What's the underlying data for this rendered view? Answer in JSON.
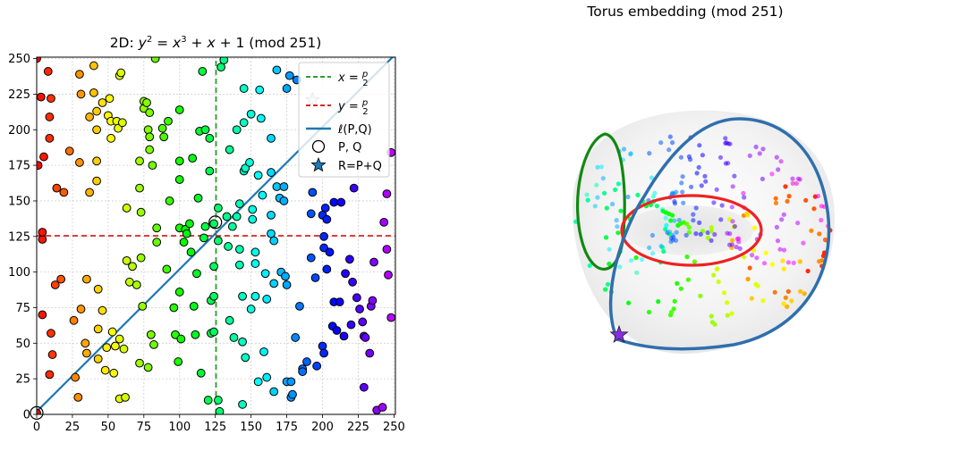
{
  "chart_data": [
    {
      "type": "scatter",
      "title": "2D: y² = x³ + x + 1 (mod 251)",
      "xlim": [
        0,
        251
      ],
      "ylim": [
        0,
        251
      ],
      "xticks": [
        0,
        25,
        50,
        75,
        100,
        125,
        150,
        175,
        200,
        225,
        250
      ],
      "yticks": [
        0,
        25,
        50,
        75,
        100,
        125,
        150,
        175,
        200,
        225,
        250
      ],
      "grid": true,
      "point_color_map": "hsv (hue by x)",
      "points": [
        [
          0,
          1
        ],
        [
          0,
          250
        ],
        [
          1,
          175
        ],
        [
          3,
          223
        ],
        [
          4,
          123
        ],
        [
          4,
          128
        ],
        [
          4,
          70
        ],
        [
          5,
          181
        ],
        [
          8,
          241
        ],
        [
          9,
          194
        ],
        [
          9,
          209
        ],
        [
          10,
          222
        ],
        [
          9,
          28
        ],
        [
          10,
          57
        ],
        [
          11,
          42
        ],
        [
          13,
          91
        ],
        [
          14,
          159
        ],
        [
          17,
          95
        ],
        [
          19,
          156
        ],
        [
          23,
          185
        ],
        [
          26,
          66
        ],
        [
          27,
          26
        ],
        [
          29,
          12
        ],
        [
          30,
          239
        ],
        [
          31,
          225
        ],
        [
          30,
          177
        ],
        [
          31,
          74
        ],
        [
          34,
          50
        ],
        [
          35,
          43
        ],
        [
          35,
          95
        ],
        [
          37,
          209
        ],
        [
          37,
          156
        ],
        [
          40,
          226
        ],
        [
          40,
          245
        ],
        [
          42,
          213
        ],
        [
          42,
          200
        ],
        [
          42,
          178
        ],
        [
          42,
          164
        ],
        [
          43,
          60
        ],
        [
          43,
          39
        ],
        [
          43,
          88
        ],
        [
          46,
          73
        ],
        [
          46,
          219
        ],
        [
          48,
          31
        ],
        [
          49,
          47
        ],
        [
          50,
          210
        ],
        [
          51,
          222
        ],
        [
          52,
          194
        ],
        [
          52,
          206
        ],
        [
          53,
          58
        ],
        [
          54,
          29
        ],
        [
          55,
          48
        ],
        [
          56,
          206
        ],
        [
          57,
          201
        ],
        [
          58,
          238
        ],
        [
          58,
          53
        ],
        [
          58,
          11
        ],
        [
          59,
          240
        ],
        [
          60,
          205
        ],
        [
          61,
          46
        ],
        [
          62,
          12
        ],
        [
          63,
          145
        ],
        [
          63,
          108
        ],
        [
          65,
          93
        ],
        [
          67,
          104
        ],
        [
          70,
          91
        ],
        [
          72,
          159
        ],
        [
          72,
          178
        ],
        [
          72,
          36
        ],
        [
          73,
          142
        ],
        [
          73,
          110
        ],
        [
          74,
          76
        ],
        [
          75,
          220
        ],
        [
          75,
          215
        ],
        [
          77,
          219
        ],
        [
          79,
          212
        ],
        [
          78,
          200
        ],
        [
          78,
          33
        ],
        [
          79,
          195
        ],
        [
          79,
          186
        ],
        [
          80,
          56
        ],
        [
          81,
          175
        ],
        [
          82,
          49
        ],
        [
          83,
          250
        ],
        [
          84,
          131
        ],
        [
          84,
          121
        ],
        [
          88,
          201
        ],
        [
          89,
          195
        ],
        [
          91,
          102
        ],
        [
          92,
          206
        ],
        [
          93,
          150
        ],
        [
          96,
          75
        ],
        [
          97,
          56
        ],
        [
          99,
          37
        ],
        [
          100,
          214
        ],
        [
          100,
          178
        ],
        [
          100,
          165
        ],
        [
          100,
          131
        ],
        [
          100,
          86
        ],
        [
          101,
          53
        ],
        [
          103,
          121
        ],
        [
          104,
          130
        ],
        [
          105,
          127
        ],
        [
          107,
          134
        ],
        [
          108,
          114
        ],
        [
          109,
          180
        ],
        [
          110,
          76
        ],
        [
          111,
          56
        ],
        [
          112,
          99
        ],
        [
          113,
          152
        ],
        [
          114,
          199
        ],
        [
          115,
          29
        ],
        [
          116,
          241
        ],
        [
          117,
          124
        ],
        [
          118,
          132
        ],
        [
          118,
          200
        ],
        [
          120,
          10
        ],
        [
          121,
          194
        ],
        [
          121,
          171
        ],
        [
          122,
          80
        ],
        [
          122,
          57
        ],
        [
          124,
          134
        ],
        [
          124,
          104
        ],
        [
          124,
          83
        ],
        [
          124,
          58
        ],
        [
          127,
          10
        ],
        [
          127,
          122
        ],
        [
          127,
          145
        ],
        [
          128,
          2
        ],
        [
          129,
          244
        ],
        [
          131,
          249
        ],
        [
          133,
          139
        ],
        [
          134,
          118
        ],
        [
          135,
          186
        ],
        [
          135,
          66
        ],
        [
          137,
          132
        ],
        [
          138,
          54
        ],
        [
          140,
          139
        ],
        [
          140,
          200
        ],
        [
          142,
          105
        ],
        [
          142,
          148
        ],
        [
          142,
          116
        ],
        [
          144,
          83
        ],
        [
          144,
          51
        ],
        [
          144,
          7
        ],
        [
          145,
          171
        ],
        [
          145,
          229
        ],
        [
          145,
          205
        ],
        [
          146,
          173
        ],
        [
          146,
          40
        ],
        [
          149,
          177
        ],
        [
          150,
          74
        ],
        [
          150,
          211
        ],
        [
          151,
          144
        ],
        [
          151,
          137
        ],
        [
          153,
          114
        ],
        [
          153,
          106
        ],
        [
          153,
          83
        ],
        [
          155,
          23
        ],
        [
          155,
          168
        ],
        [
          156,
          228
        ],
        [
          157,
          208
        ],
        [
          158,
          154
        ],
        [
          159,
          44
        ],
        [
          160,
          99
        ],
        [
          161,
          81
        ],
        [
          161,
          26
        ],
        [
          164,
          194
        ],
        [
          164,
          170
        ],
        [
          164,
          140
        ],
        [
          164,
          127
        ],
        [
          166,
          122
        ],
        [
          166,
          92
        ],
        [
          166,
          16
        ],
        [
          168,
          242
        ],
        [
          168,
          160
        ],
        [
          170,
          152
        ],
        [
          171,
          100
        ],
        [
          173,
          150
        ],
        [
          173,
          160
        ],
        [
          174,
          97
        ],
        [
          175,
          229
        ],
        [
          175,
          91
        ],
        [
          175,
          23
        ],
        [
          177,
          238
        ],
        [
          178,
          23
        ],
        [
          178,
          12
        ],
        [
          179,
          14
        ],
        [
          181,
          54
        ],
        [
          182,
          235
        ],
        [
          184,
          76
        ],
        [
          186,
          32
        ],
        [
          186,
          30
        ],
        [
          189,
          37
        ],
        [
          192,
          141
        ],
        [
          192,
          110
        ],
        [
          193,
          156
        ],
        [
          195,
          96
        ],
        [
          196,
          34
        ],
        [
          200,
          140
        ],
        [
          200,
          48
        ],
        [
          201,
          125
        ],
        [
          201,
          117
        ],
        [
          201,
          43
        ],
        [
          202,
          145
        ],
        [
          203,
          137
        ],
        [
          203,
          102
        ],
        [
          205,
          114
        ],
        [
          207,
          62
        ],
        [
          208,
          149
        ],
        [
          208,
          79
        ],
        [
          210,
          59
        ],
        [
          212,
          79
        ],
        [
          213,
          149
        ],
        [
          215,
          55
        ],
        [
          216,
          99
        ],
        [
          219,
          109
        ],
        [
          220,
          63
        ],
        [
          221,
          93
        ],
        [
          222,
          159
        ],
        [
          224,
          82
        ],
        [
          226,
          74
        ],
        [
          228,
          65
        ],
        [
          229,
          19
        ],
        [
          229,
          55
        ],
        [
          230,
          54
        ],
        [
          233,
          43
        ],
        [
          234,
          76
        ],
        [
          235,
          80
        ],
        [
          236,
          107
        ],
        [
          238,
          3
        ],
        [
          242,
          5
        ],
        [
          243,
          135
        ],
        [
          245,
          116
        ],
        [
          245,
          155
        ],
        [
          246,
          98
        ],
        [
          248,
          184
        ],
        [
          248,
          68
        ]
      ],
      "line_series": [
        {
          "name": "x = p/2",
          "x": [
            125.5,
            125.5
          ],
          "y": [
            0,
            251
          ],
          "color": "#2ca02c",
          "style": "dashed"
        },
        {
          "name": "y = p/2",
          "x": [
            0,
            251
          ],
          "y": [
            125.5,
            125.5
          ],
          "color": "#d62728",
          "style": "dashed"
        },
        {
          "name": "ℓ(P,Q)",
          "x": [
            0,
            251
          ],
          "y": [
            2,
            253
          ],
          "color": "#1f77b4",
          "style": "solid"
        }
      ],
      "marked_points": [
        {
          "name": "P, Q",
          "marker": "open-circle",
          "points": [
            [
              0,
              1
            ],
            [
              125,
              135
            ]
          ]
        },
        {
          "name": "R=P+Q",
          "marker": "star",
          "points": [
            [
              193,
              221
            ]
          ]
        }
      ],
      "legend": {
        "placement": "top-right",
        "entries": [
          {
            "label": "x = p/2",
            "kind": "dashed-line",
            "color": "#2ca02c"
          },
          {
            "label": "y = p/2",
            "kind": "dashed-line",
            "color": "#d62728"
          },
          {
            "label": "ℓ(P,Q)",
            "kind": "solid-line",
            "color": "#1f77b4"
          },
          {
            "label": "P, Q",
            "kind": "open-circle",
            "color": "#000000"
          },
          {
            "label": "R=P+Q",
            "kind": "star",
            "color": "#1f77b4"
          }
        ]
      }
    },
    {
      "type": "scatter",
      "title": "Torus embedding (mod 251)",
      "axes_visible": false,
      "curves": [
        {
          "name": "x = p/2 loop",
          "color": "#118811"
        },
        {
          "name": "y = p/2 loop",
          "color": "#ee2222"
        },
        {
          "name": "ℓ(P,Q) loop",
          "color": "#2f6fad"
        }
      ],
      "marked_points": [
        {
          "name": "R=P+Q",
          "marker": "star",
          "color": "#8a2be2"
        }
      ]
    }
  ]
}
